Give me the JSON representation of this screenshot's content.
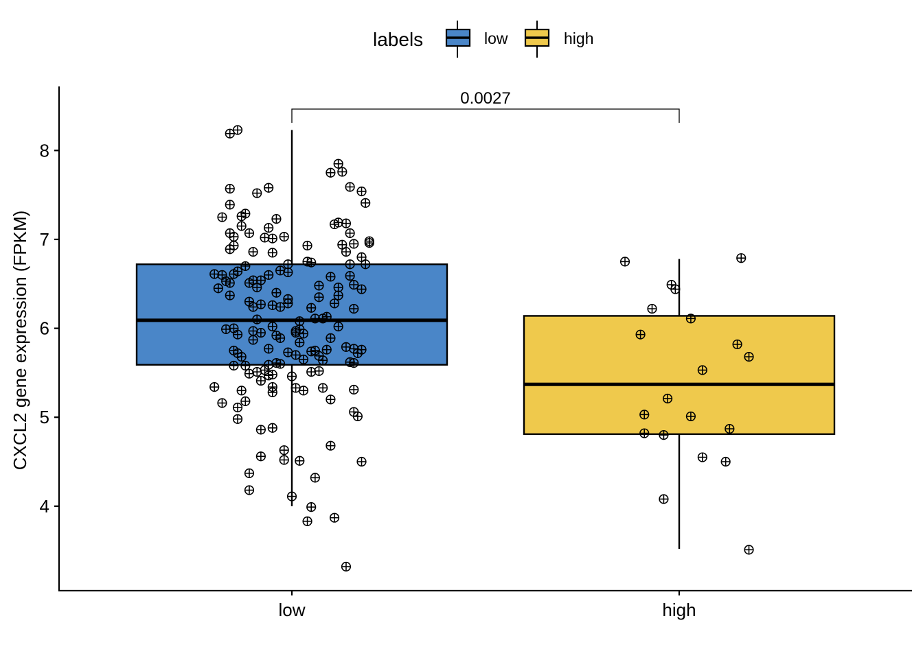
{
  "chart_data": {
    "type": "boxplot",
    "title": "",
    "xlabel": "",
    "ylabel": "CXCL2 gene expression (FPKM)",
    "ylim": [
      3.05,
      8.72
    ],
    "yticks": [
      4,
      5,
      6,
      7,
      8
    ],
    "categories": [
      "low",
      "high"
    ],
    "legend": {
      "title": "labels",
      "position": "top",
      "items": [
        {
          "label": "low",
          "color": "#4a86c8"
        },
        {
          "label": "high",
          "color": "#efc94c"
        }
      ]
    },
    "comparison": {
      "groups": [
        "low",
        "high"
      ],
      "p_value_label": "0.0027"
    },
    "series": [
      {
        "name": "low",
        "color": "#4a86c8",
        "box": {
          "q1": 5.59,
          "median": 6.09,
          "q3": 6.72,
          "whisker_low": 4.0,
          "whisker_high": 8.23
        },
        "points": [
          [
            -0.16,
            8.19
          ],
          [
            -0.14,
            8.23
          ],
          [
            -0.16,
            7.57
          ],
          [
            -0.16,
            7.39
          ],
          [
            -0.18,
            7.25
          ],
          [
            -0.13,
            7.26
          ],
          [
            -0.12,
            7.29
          ],
          [
            -0.13,
            7.15
          ],
          [
            -0.16,
            7.07
          ],
          [
            -0.15,
            7.03
          ],
          [
            -0.11,
            7.07
          ],
          [
            -0.15,
            6.93
          ],
          [
            -0.16,
            6.89
          ],
          [
            -0.09,
            7.52
          ],
          [
            -0.06,
            7.58
          ],
          [
            -0.04,
            7.23
          ],
          [
            -0.06,
            7.13
          ],
          [
            -0.07,
            7.02
          ],
          [
            -0.05,
            7.01
          ],
          [
            -0.02,
            7.03
          ],
          [
            -0.05,
            6.85
          ],
          [
            -0.1,
            6.86
          ],
          [
            0.1,
            7.75
          ],
          [
            0.12,
            7.85
          ],
          [
            0.13,
            7.76
          ],
          [
            0.15,
            7.59
          ],
          [
            0.18,
            7.54
          ],
          [
            0.19,
            7.41
          ],
          [
            0.11,
            7.17
          ],
          [
            0.12,
            7.19
          ],
          [
            0.14,
            7.18
          ],
          [
            0.15,
            7.07
          ],
          [
            0.13,
            6.94
          ],
          [
            0.16,
            6.95
          ],
          [
            0.14,
            6.86
          ],
          [
            0.2,
            6.98
          ],
          [
            0.2,
            6.96
          ],
          [
            0.18,
            6.8
          ],
          [
            0.04,
            6.93
          ],
          [
            0.15,
            6.72
          ],
          [
            0.19,
            6.72
          ],
          [
            -0.01,
            6.72
          ],
          [
            0.04,
            6.75
          ],
          [
            0.05,
            6.74
          ],
          [
            -0.2,
            6.61
          ],
          [
            -0.19,
            6.45
          ],
          [
            -0.18,
            6.6
          ],
          [
            -0.17,
            6.53
          ],
          [
            -0.16,
            6.51
          ],
          [
            -0.15,
            6.61
          ],
          [
            -0.14,
            6.64
          ],
          [
            -0.16,
            6.37
          ],
          [
            -0.12,
            6.7
          ],
          [
            -0.11,
            6.51
          ],
          [
            -0.1,
            6.54
          ],
          [
            -0.08,
            6.54
          ],
          [
            -0.09,
            6.46
          ],
          [
            -0.06,
            6.6
          ],
          [
            -0.03,
            6.65
          ],
          [
            -0.01,
            6.63
          ],
          [
            -0.04,
            6.4
          ],
          [
            -0.11,
            6.3
          ],
          [
            -0.1,
            6.24
          ],
          [
            -0.08,
            6.27
          ],
          [
            -0.05,
            6.26
          ],
          [
            -0.03,
            6.24
          ],
          [
            -0.01,
            6.33
          ],
          [
            -0.01,
            6.28
          ],
          [
            0.07,
            6.48
          ],
          [
            0.1,
            6.58
          ],
          [
            0.07,
            6.35
          ],
          [
            0.12,
            6.46
          ],
          [
            0.12,
            6.37
          ],
          [
            0.15,
            6.59
          ],
          [
            0.16,
            6.49
          ],
          [
            0.18,
            6.44
          ],
          [
            0.11,
            6.28
          ],
          [
            0.16,
            6.22
          ],
          [
            0.05,
            6.23
          ],
          [
            0.06,
            6.11
          ],
          [
            0.08,
            6.11
          ],
          [
            0.09,
            6.13
          ],
          [
            -0.15,
            6.0
          ],
          [
            -0.17,
            5.99
          ],
          [
            -0.14,
            5.93
          ],
          [
            -0.09,
            6.1
          ],
          [
            -0.1,
            5.97
          ],
          [
            -0.08,
            5.95
          ],
          [
            -0.1,
            5.87
          ],
          [
            -0.05,
            6.02
          ],
          [
            -0.04,
            5.92
          ],
          [
            -0.03,
            5.89
          ],
          [
            -0.06,
            5.77
          ],
          [
            -0.15,
            5.75
          ],
          [
            -0.14,
            5.72
          ],
          [
            -0.13,
            5.68
          ],
          [
            -0.12,
            5.58
          ],
          [
            -0.15,
            5.58
          ],
          [
            -0.11,
            5.49
          ],
          [
            -0.09,
            5.51
          ],
          [
            -0.07,
            5.53
          ],
          [
            -0.06,
            5.59
          ],
          [
            -0.05,
            5.48
          ],
          [
            -0.04,
            5.61
          ],
          [
            -0.01,
            5.73
          ],
          [
            0.01,
            5.97
          ],
          [
            0.01,
            5.95
          ],
          [
            0.02,
            5.99
          ],
          [
            0.02,
            6.08
          ],
          [
            0.01,
            5.7
          ],
          [
            0.02,
            5.84
          ],
          [
            0.03,
            5.94
          ],
          [
            0.06,
            5.75
          ],
          [
            0.07,
            5.69
          ],
          [
            0.08,
            5.64
          ],
          [
            0.05,
            5.74
          ],
          [
            0.09,
            5.76
          ],
          [
            0.1,
            5.89
          ],
          [
            0.12,
            6.02
          ],
          [
            0.14,
            5.79
          ],
          [
            0.16,
            5.77
          ],
          [
            0.17,
            5.72
          ],
          [
            0.18,
            5.76
          ],
          [
            0.15,
            5.62
          ],
          [
            0.16,
            5.61
          ],
          [
            0.03,
            5.65
          ],
          [
            0.05,
            5.51
          ],
          [
            0.07,
            5.52
          ],
          [
            -0.03,
            5.6
          ],
          [
            0.0,
            5.46
          ],
          [
            -0.2,
            5.34
          ],
          [
            -0.18,
            5.16
          ],
          [
            -0.13,
            5.3
          ],
          [
            -0.14,
            5.11
          ],
          [
            -0.12,
            5.18
          ],
          [
            -0.14,
            4.98
          ],
          [
            -0.08,
            5.41
          ],
          [
            -0.06,
            5.47
          ],
          [
            -0.05,
            5.34
          ],
          [
            -0.05,
            5.28
          ],
          [
            -0.08,
            4.86
          ],
          [
            -0.05,
            4.88
          ],
          [
            0.01,
            5.33
          ],
          [
            0.03,
            5.3
          ],
          [
            0.08,
            5.33
          ],
          [
            0.1,
            5.2
          ],
          [
            0.16,
            5.31
          ],
          [
            0.16,
            5.06
          ],
          [
            0.17,
            5.01
          ],
          [
            -0.02,
            4.63
          ],
          [
            -0.02,
            4.52
          ],
          [
            0.02,
            4.51
          ],
          [
            -0.08,
            4.56
          ],
          [
            -0.11,
            4.37
          ],
          [
            -0.11,
            4.18
          ],
          [
            0.1,
            4.68
          ],
          [
            0.18,
            4.5
          ],
          [
            0.06,
            4.32
          ],
          [
            0.0,
            4.11
          ],
          [
            0.05,
            3.99
          ],
          [
            0.04,
            3.83
          ],
          [
            0.11,
            3.87
          ],
          [
            0.14,
            3.32
          ]
        ]
      },
      {
        "name": "high",
        "color": "#efc94c",
        "box": {
          "q1": 4.81,
          "median": 5.37,
          "q3": 6.14,
          "whisker_low": 3.52,
          "whisker_high": 6.78
        },
        "points": [
          [
            -0.14,
            6.75
          ],
          [
            0.16,
            6.79
          ],
          [
            -0.02,
            6.49
          ],
          [
            -0.01,
            6.44
          ],
          [
            -0.07,
            6.22
          ],
          [
            0.03,
            6.11
          ],
          [
            -0.1,
            5.93
          ],
          [
            0.15,
            5.82
          ],
          [
            0.18,
            5.68
          ],
          [
            0.06,
            5.53
          ],
          [
            -0.03,
            5.21
          ],
          [
            -0.09,
            5.03
          ],
          [
            0.03,
            5.01
          ],
          [
            -0.09,
            4.82
          ],
          [
            -0.04,
            4.8
          ],
          [
            0.13,
            4.87
          ],
          [
            0.06,
            4.55
          ],
          [
            0.12,
            4.5
          ],
          [
            -0.04,
            4.08
          ],
          [
            0.18,
            3.51
          ]
        ]
      }
    ]
  }
}
